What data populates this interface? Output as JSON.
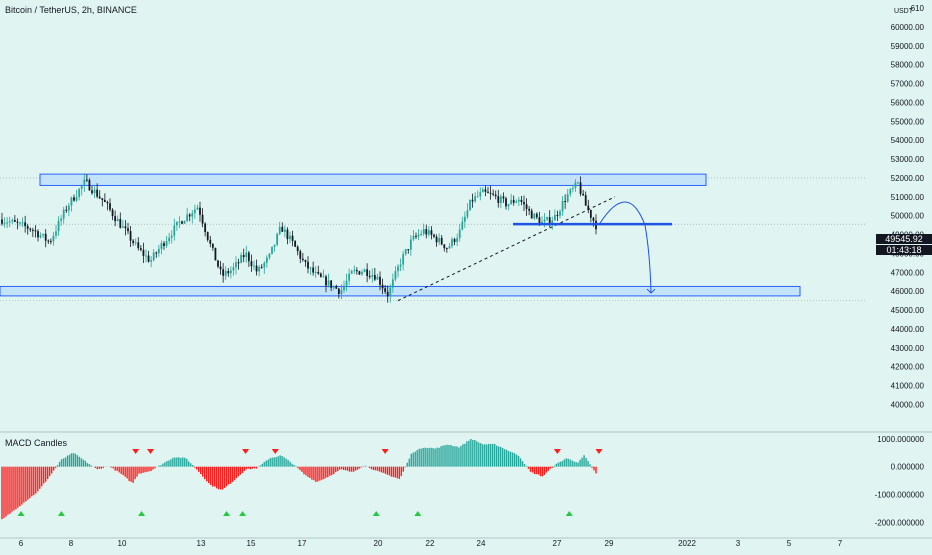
{
  "header": {
    "title": "Bitcoin / TetherUS, 2h, BINANCE",
    "currency": "USDT",
    "indicator": "MACD Candles"
  },
  "price_tag": {
    "price": "49545.92",
    "countdown": "01:43:18"
  },
  "colors": {
    "background": "#e0f4f1",
    "up": "#26a69a",
    "down": "#131722",
    "zone_fill": "#bbdefb",
    "zone_stroke": "#2962ff",
    "macd_pos": "#26a69a",
    "macd_neg": "#ff1e1e",
    "buy": "#26c940",
    "sell": "#ff1e1e",
    "line": "#1e53e5",
    "axis_text": "#131722"
  },
  "chart_data": [
    {
      "type": "candlestick",
      "title": "Bitcoin / TetherUS, 2h, BINANCE",
      "x_ticks": [
        "6",
        "8",
        "10",
        "13",
        "15",
        "17",
        "20",
        "22",
        "24",
        "27",
        "29",
        "2022",
        "3",
        "5",
        "7"
      ],
      "y_ticks": [
        "610",
        "60000.00",
        "59000.00",
        "58000.00",
        "57000.00",
        "56000.00",
        "55000.00",
        "54000.00",
        "53000.00",
        "52000.00",
        "51000.00",
        "50000.00",
        "49000.00",
        "48000.00",
        "47000.00",
        "46000.00",
        "45000.00",
        "44000.00",
        "43000.00",
        "42000.00",
        "41000.00",
        "40000.00"
      ],
      "ylim": [
        39600,
        61000
      ],
      "price_path": [
        [
          0,
          49800
        ],
        [
          5,
          49300
        ],
        [
          8,
          48600
        ],
        [
          11,
          50500
        ],
        [
          14,
          51800
        ],
        [
          17,
          50800
        ],
        [
          20,
          49500
        ],
        [
          23,
          48200
        ],
        [
          25,
          47600
        ],
        [
          27,
          48500
        ],
        [
          30,
          49700
        ],
        [
          33,
          50500
        ],
        [
          35,
          48500
        ],
        [
          37,
          46800
        ],
        [
          39,
          47200
        ],
        [
          41,
          48000
        ],
        [
          43,
          47000
        ],
        [
          45,
          47800
        ],
        [
          47,
          49400
        ],
        [
          49,
          48500
        ],
        [
          51,
          47400
        ],
        [
          53,
          46800
        ],
        [
          55,
          46400
        ],
        [
          57,
          46000
        ],
        [
          59,
          47000
        ],
        [
          61,
          47100
        ],
        [
          63,
          46800
        ],
        [
          65,
          45800
        ],
        [
          67,
          47500
        ],
        [
          69,
          48700
        ],
        [
          71,
          49200
        ],
        [
          73,
          48800
        ],
        [
          75,
          48300
        ],
        [
          77,
          49100
        ],
        [
          79,
          50800
        ],
        [
          81,
          51200
        ],
        [
          83,
          51000
        ],
        [
          85,
          50600
        ],
        [
          87,
          50900
        ],
        [
          89,
          50100
        ],
        [
          91,
          49600
        ],
        [
          93,
          49900
        ],
        [
          95,
          51000
        ],
        [
          97,
          51700
        ],
        [
          98,
          50700
        ],
        [
          100,
          49500
        ]
      ],
      "zones": [
        {
          "low": 51600,
          "high": 52200
        },
        {
          "low": 45750,
          "high": 46250
        }
      ],
      "support_line": 49550,
      "current_price": 49545.92,
      "countdown": "01:43:18"
    },
    {
      "type": "bar",
      "title": "MACD Candles",
      "y_ticks": [
        "1000.000000",
        "0.000000",
        "-1000.000000",
        "-2000.000000"
      ],
      "ylim": [
        -2200,
        1100
      ],
      "shape": [
        [
          0,
          -1900
        ],
        [
          3,
          -1400
        ],
        [
          6,
          -900
        ],
        [
          8,
          -350
        ],
        [
          10,
          250
        ],
        [
          12,
          500
        ],
        [
          14,
          200
        ],
        [
          16,
          -100
        ],
        [
          18,
          20
        ],
        [
          20,
          -250
        ],
        [
          22,
          -600
        ],
        [
          23,
          -250
        ],
        [
          25,
          -150
        ],
        [
          27,
          100
        ],
        [
          29,
          350
        ],
        [
          31,
          300
        ],
        [
          33,
          -150
        ],
        [
          35,
          -650
        ],
        [
          37,
          -850
        ],
        [
          39,
          -500
        ],
        [
          41,
          -100
        ],
        [
          43,
          -50
        ],
        [
          45,
          300
        ],
        [
          47,
          400
        ],
        [
          49,
          100
        ],
        [
          51,
          -300
        ],
        [
          53,
          -550
        ],
        [
          55,
          -350
        ],
        [
          57,
          -100
        ],
        [
          59,
          -200
        ],
        [
          61,
          50
        ],
        [
          63,
          -150
        ],
        [
          65,
          -300
        ],
        [
          67,
          -450
        ],
        [
          69,
          500
        ],
        [
          71,
          700
        ],
        [
          73,
          650
        ],
        [
          75,
          800
        ],
        [
          77,
          700
        ],
        [
          79,
          1000
        ],
        [
          81,
          800
        ],
        [
          83,
          800
        ],
        [
          85,
          600
        ],
        [
          87,
          400
        ],
        [
          89,
          -200
        ],
        [
          91,
          -350
        ],
        [
          93,
          50
        ],
        [
          95,
          300
        ],
        [
          97,
          150
        ],
        [
          98,
          400
        ],
        [
          100,
          -250
        ]
      ],
      "sell_signals": [
        22.5,
        25.0,
        41.0,
        46.0,
        64.5,
        93.5,
        100.5
      ],
      "buy_signals": [
        3.2,
        10.0,
        23.5,
        37.8,
        40.5,
        63.0,
        70.0,
        95.5
      ]
    }
  ]
}
